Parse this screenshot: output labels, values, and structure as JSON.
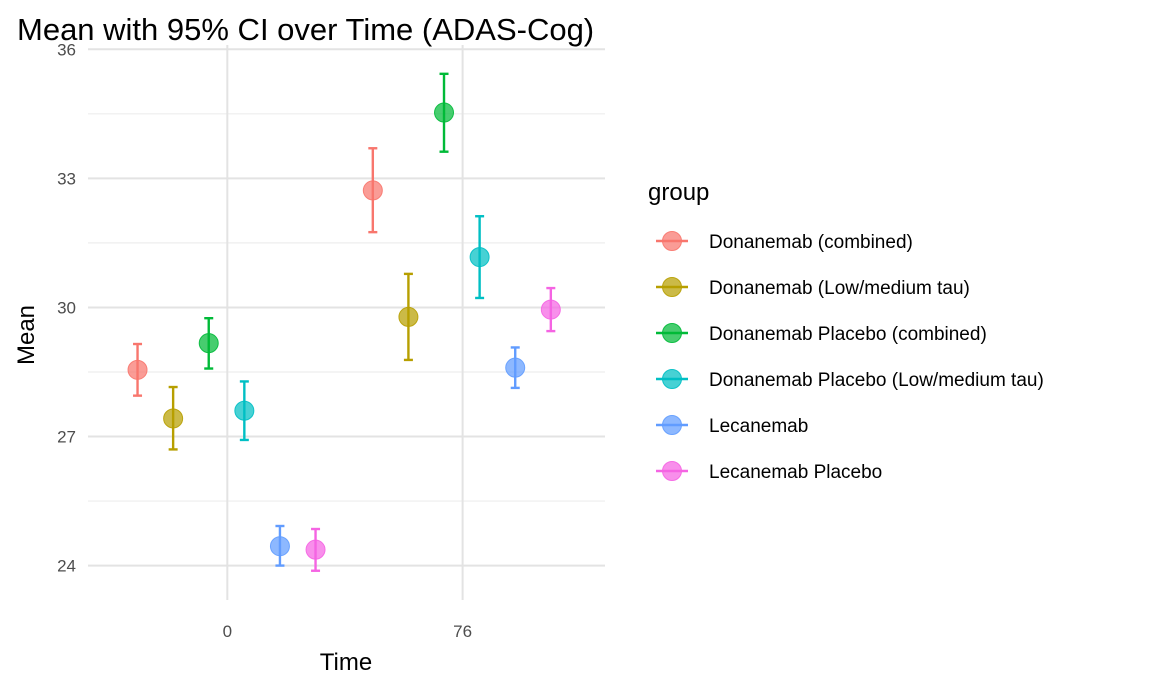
{
  "chart_data": {
    "type": "scatter",
    "title": "Mean with 95% CI over Time (ADAS-Cog)",
    "xlabel": "Time",
    "ylabel": "Mean",
    "x_ticks": [
      0,
      76
    ],
    "y_ticks": [
      24,
      27,
      30,
      33,
      36
    ],
    "xlim": [
      -45,
      122
    ],
    "ylim": [
      23.2,
      36.1
    ],
    "grid": true,
    "legend": {
      "title": "group",
      "position": "right"
    },
    "series": [
      {
        "name": "Donanemab (combined)",
        "color": "#F8766D",
        "points": [
          {
            "x": -29,
            "y": 28.55,
            "lo": 27.95,
            "hi": 29.15
          },
          {
            "x": 47,
            "y": 32.72,
            "lo": 31.75,
            "hi": 33.7
          }
        ]
      },
      {
        "name": "Donanemab (Low/medium tau)",
        "color": "#B79F00",
        "points": [
          {
            "x": -17.5,
            "y": 27.42,
            "lo": 26.7,
            "hi": 28.15
          },
          {
            "x": 58.5,
            "y": 29.78,
            "lo": 28.78,
            "hi": 30.78
          }
        ]
      },
      {
        "name": "Donanemab Placebo (combined)",
        "color": "#00BA38",
        "points": [
          {
            "x": -6,
            "y": 29.17,
            "lo": 28.58,
            "hi": 29.75
          },
          {
            "x": 70,
            "y": 34.53,
            "lo": 33.62,
            "hi": 35.43
          }
        ]
      },
      {
        "name": "Donanemab Placebo (Low/medium tau)",
        "color": "#00BFC4",
        "points": [
          {
            "x": 5.5,
            "y": 27.6,
            "lo": 26.92,
            "hi": 28.28
          },
          {
            "x": 81.5,
            "y": 31.17,
            "lo": 30.22,
            "hi": 32.12
          }
        ]
      },
      {
        "name": "Lecanemab",
        "color": "#619CFF",
        "points": [
          {
            "x": 17,
            "y": 24.45,
            "lo": 24.0,
            "hi": 24.92
          },
          {
            "x": 93,
            "y": 28.6,
            "lo": 28.13,
            "hi": 29.07
          }
        ]
      },
      {
        "name": "Lecanemab Placebo",
        "color": "#F564E3",
        "points": [
          {
            "x": 28.5,
            "y": 24.37,
            "lo": 23.88,
            "hi": 24.85
          },
          {
            "x": 104.5,
            "y": 29.95,
            "lo": 29.45,
            "hi": 30.45
          }
        ]
      }
    ]
  }
}
